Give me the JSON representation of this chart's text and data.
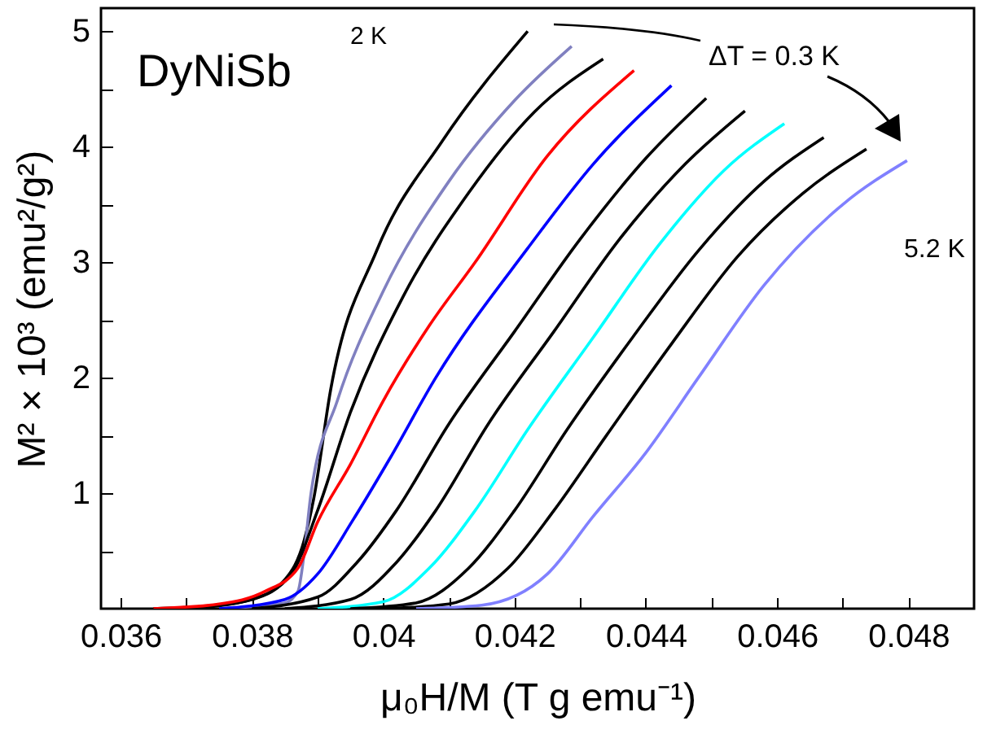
{
  "chart_data": {
    "type": "line",
    "xlabel": "μ₀H/M (T g emu⁻¹)",
    "ylabel": "M² × 10³ (emu²/g²)",
    "xlim": [
      0.0357,
      0.049
    ],
    "ylim": [
      0,
      5.2
    ],
    "xticks": [
      0.036,
      {
        "value": 0.037,
        "label": null
      },
      0.038,
      {
        "value": 0.039,
        "label": null
      },
      0.04,
      {
        "value": 0.041,
        "label": null
      },
      0.042,
      {
        "value": 0.043,
        "label": null
      },
      0.044,
      {
        "value": 0.045,
        "label": null
      },
      0.046,
      {
        "value": 0.047,
        "label": null
      },
      0.048
    ],
    "yticks": [
      {
        "value": 0.5,
        "label": null
      },
      1,
      {
        "value": 1.5,
        "label": null
      },
      2,
      {
        "value": 2.5,
        "label": null
      },
      3,
      {
        "value": 3.5,
        "label": null
      },
      4,
      {
        "value": 4.5,
        "label": null
      },
      5
    ],
    "grid": false,
    "annotations": [
      "DyNiSb",
      "ΔT = 0.3 K",
      "2 K",
      "5.2 K"
    ],
    "series": [
      {
        "color": "#000000",
        "x": [
          0.0365,
          0.0375,
          0.038,
          0.0385,
          0.0388,
          0.03894,
          0.0392,
          0.0399,
          0.0409,
          0.0422
        ],
        "values": [
          0,
          0.03,
          0.08,
          0.25,
          0.6,
          0.95,
          1.9,
          3.1,
          4.05,
          5.0
        ]
      },
      {
        "color": "#8080c0",
        "x": [
          0.0375,
          0.0385,
          0.0387,
          0.0388,
          0.0389,
          0.0393,
          0.04,
          0.041,
          0.042,
          0.04287
        ],
        "values": [
          0,
          0.05,
          0.15,
          0.5,
          1.0,
          1.8,
          2.75,
          3.7,
          4.4,
          4.87
        ]
      },
      {
        "color": "#000000",
        "x": [
          0.037,
          0.038,
          0.0386,
          0.039,
          0.0395,
          0.0403,
          0.0413,
          0.0423,
          0.04335
        ],
        "values": [
          0,
          0.08,
          0.3,
          0.85,
          1.7,
          2.7,
          3.6,
          4.3,
          4.76
        ]
      },
      {
        "color": "#ff0000",
        "x": [
          0.0365,
          0.0375,
          0.0382,
          0.0387,
          0.039,
          0.0395,
          0.04,
          0.0407,
          0.0414,
          0.0425,
          0.04382
        ],
        "values": [
          0,
          0.04,
          0.15,
          0.35,
          0.75,
          1.25,
          1.8,
          2.45,
          3.0,
          3.92,
          4.66
        ]
      },
      {
        "color": "#0000ff",
        "x": [
          0.0375,
          0.0385,
          0.039,
          0.03953,
          0.0401,
          0.0408,
          0.0422,
          0.0432,
          0.04439
        ],
        "values": [
          0,
          0.08,
          0.3,
          0.76,
          1.3,
          2.0,
          3.12,
          3.85,
          4.53
        ]
      },
      {
        "color": "#000000",
        "x": [
          0.038,
          0.039,
          0.0396,
          0.0402,
          0.041,
          0.042,
          0.043,
          0.044,
          0.04492
        ],
        "values": [
          0,
          0.1,
          0.4,
          0.85,
          1.6,
          2.4,
          3.2,
          3.9,
          4.42
        ]
      },
      {
        "color": "#000000",
        "x": [
          0.0385,
          0.0395,
          0.0402,
          0.0408,
          0.0416,
          0.0426,
          0.0436,
          0.0446,
          0.04551
        ],
        "values": [
          0,
          0.08,
          0.4,
          0.85,
          1.6,
          2.4,
          3.2,
          3.85,
          4.31
        ]
      },
      {
        "color": "#00ffff",
        "x": [
          0.039,
          0.04,
          0.0407,
          0.0414,
          0.0422,
          0.0432,
          0.0442,
          0.0452,
          0.04611
        ],
        "values": [
          0,
          0.06,
          0.35,
          0.85,
          1.55,
          2.35,
          3.15,
          3.8,
          4.2
        ]
      },
      {
        "color": "#000000",
        "x": [
          0.0395,
          0.0405,
          0.0413,
          0.042,
          0.0428,
          0.0438,
          0.0448,
          0.0458,
          0.04671
        ],
        "values": [
          0,
          0.05,
          0.35,
          0.85,
          1.55,
          2.35,
          3.1,
          3.7,
          4.08
        ]
      },
      {
        "color": "#000000",
        "x": [
          0.04,
          0.041,
          0.0419,
          0.0426,
          0.0434,
          0.0444,
          0.0454,
          0.0464,
          0.04736
        ],
        "values": [
          0,
          0.04,
          0.35,
          0.85,
          1.5,
          2.3,
          3.05,
          3.6,
          3.98
        ]
      },
      {
        "color": "#8080ff",
        "x": [
          0.0405,
          0.0415,
          0.0425,
          0.0432,
          0.044,
          0.0448,
          0.0458,
          0.047,
          0.04798
        ],
        "values": [
          0,
          0.03,
          0.3,
          0.8,
          1.35,
          2.0,
          2.8,
          3.5,
          3.88
        ]
      }
    ]
  }
}
